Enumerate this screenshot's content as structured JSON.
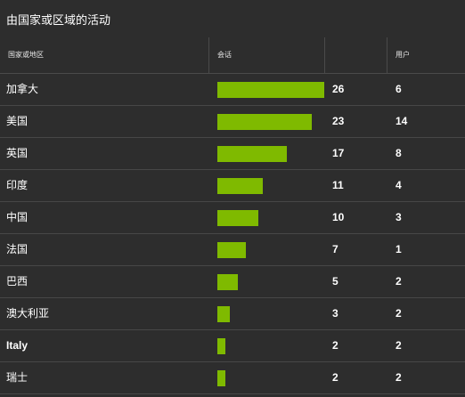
{
  "title": "由国家或区域的活动",
  "table": {
    "headers": {
      "country": "国家或地区",
      "sessions": "会话",
      "users": "用户"
    },
    "bar_color": "#7fba00",
    "rows": [
      {
        "country": "加拿大",
        "sessions": "26",
        "users": "6"
      },
      {
        "country": "美国",
        "sessions": "23",
        "users": "14"
      },
      {
        "country": "英国",
        "sessions": "17",
        "users": "8"
      },
      {
        "country": "印度",
        "sessions": "11",
        "users": "4"
      },
      {
        "country": "中国",
        "sessions": "10",
        "users": "3"
      },
      {
        "country": "法国",
        "sessions": "7",
        "users": "1"
      },
      {
        "country": "巴西",
        "sessions": "5",
        "users": "2"
      },
      {
        "country": "澳大利亚",
        "sessions": "3",
        "users": "2"
      },
      {
        "country": "Italy",
        "sessions": "2",
        "users": "2"
      },
      {
        "country": "瑞士",
        "sessions": "2",
        "users": "2"
      }
    ]
  }
}
